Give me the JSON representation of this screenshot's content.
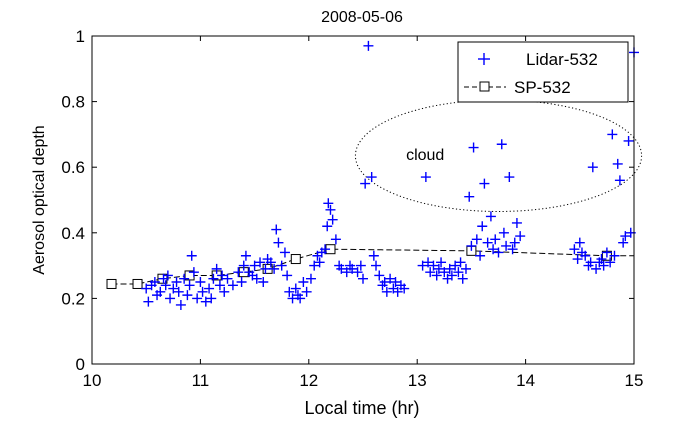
{
  "chart_data": {
    "type": "scatter",
    "title": "2008-05-06",
    "xlabel": "Local time (hr)",
    "ylabel": "Aerosol optical depth",
    "xlim": [
      10,
      15
    ],
    "ylim": [
      0,
      1
    ],
    "xticks": [
      10,
      11,
      12,
      13,
      14,
      15
    ],
    "yticks": [
      0,
      0.2,
      0.4,
      0.6,
      0.8,
      1
    ],
    "ytick_labels": [
      "0",
      "0.2",
      "0.4",
      "0.6",
      "0.8",
      "1"
    ],
    "grid": false,
    "legend_position": "top-right",
    "annotation": {
      "text": "cloud",
      "x": 13.0,
      "y": 0.64
    },
    "cloud_ellipse": {
      "cx": 13.75,
      "cy": 0.635,
      "rx": 1.32,
      "ry": 0.17
    },
    "colors": {
      "lidar": "#0000ff",
      "sp": "#000000"
    },
    "series": [
      {
        "name": "Lidar-532",
        "marker": "plus",
        "points": [
          [
            10.5,
            0.23
          ],
          [
            10.52,
            0.19
          ],
          [
            10.55,
            0.24
          ],
          [
            10.58,
            0.25
          ],
          [
            10.6,
            0.21
          ],
          [
            10.63,
            0.22
          ],
          [
            10.66,
            0.26
          ],
          [
            10.68,
            0.24
          ],
          [
            10.7,
            0.27
          ],
          [
            10.72,
            0.2
          ],
          [
            10.75,
            0.23
          ],
          [
            10.78,
            0.25
          ],
          [
            10.8,
            0.22
          ],
          [
            10.82,
            0.18
          ],
          [
            10.85,
            0.26
          ],
          [
            10.88,
            0.21
          ],
          [
            10.9,
            0.24
          ],
          [
            10.92,
            0.33
          ],
          [
            10.94,
            0.28
          ],
          [
            10.97,
            0.2
          ],
          [
            11.0,
            0.25
          ],
          [
            11.02,
            0.22
          ],
          [
            11.05,
            0.19
          ],
          [
            11.08,
            0.23
          ],
          [
            11.1,
            0.2
          ],
          [
            11.12,
            0.26
          ],
          [
            11.15,
            0.29
          ],
          [
            11.18,
            0.24
          ],
          [
            11.2,
            0.27
          ],
          [
            11.22,
            0.22
          ],
          [
            11.25,
            0.26
          ],
          [
            11.3,
            0.24
          ],
          [
            11.35,
            0.28
          ],
          [
            11.38,
            0.25
          ],
          [
            11.4,
            0.3
          ],
          [
            11.42,
            0.33
          ],
          [
            11.45,
            0.28
          ],
          [
            11.48,
            0.27
          ],
          [
            11.5,
            0.3
          ],
          [
            11.52,
            0.26
          ],
          [
            11.55,
            0.31
          ],
          [
            11.58,
            0.25
          ],
          [
            11.6,
            0.29
          ],
          [
            11.62,
            0.32
          ],
          [
            11.65,
            0.31
          ],
          [
            11.68,
            0.29
          ],
          [
            11.7,
            0.41
          ],
          [
            11.72,
            0.37
          ],
          [
            11.75,
            0.3
          ],
          [
            11.78,
            0.34
          ],
          [
            11.8,
            0.27
          ],
          [
            11.82,
            0.22
          ],
          [
            11.85,
            0.2
          ],
          [
            11.88,
            0.23
          ],
          [
            11.9,
            0.21
          ],
          [
            11.92,
            0.2
          ],
          [
            11.95,
            0.25
          ],
          [
            11.98,
            0.22
          ],
          [
            12.02,
            0.26
          ],
          [
            12.05,
            0.3
          ],
          [
            12.08,
            0.33
          ],
          [
            12.1,
            0.31
          ],
          [
            12.12,
            0.34
          ],
          [
            12.15,
            0.35
          ],
          [
            12.17,
            0.42
          ],
          [
            12.18,
            0.49
          ],
          [
            12.2,
            0.47
          ],
          [
            12.22,
            0.44
          ],
          [
            12.25,
            0.38
          ],
          [
            12.28,
            0.3
          ],
          [
            12.3,
            0.29
          ],
          [
            12.35,
            0.28
          ],
          [
            12.38,
            0.3
          ],
          [
            12.4,
            0.29
          ],
          [
            12.45,
            0.28
          ],
          [
            12.48,
            0.3
          ],
          [
            12.5,
            0.26
          ],
          [
            12.52,
            0.55
          ],
          [
            12.55,
            0.97
          ],
          [
            12.58,
            0.57
          ],
          [
            12.6,
            0.33
          ],
          [
            12.62,
            0.3
          ],
          [
            12.65,
            0.27
          ],
          [
            12.68,
            0.24
          ],
          [
            12.7,
            0.25
          ],
          [
            12.72,
            0.22
          ],
          [
            12.75,
            0.26
          ],
          [
            12.78,
            0.23
          ],
          [
            12.8,
            0.25
          ],
          [
            12.82,
            0.22
          ],
          [
            12.85,
            0.24
          ],
          [
            12.88,
            0.23
          ],
          [
            13.05,
            0.3
          ],
          [
            13.08,
            0.57
          ],
          [
            13.1,
            0.31
          ],
          [
            13.12,
            0.28
          ],
          [
            13.15,
            0.3
          ],
          [
            13.18,
            0.27
          ],
          [
            13.2,
            0.29
          ],
          [
            13.22,
            0.31
          ],
          [
            13.25,
            0.28
          ],
          [
            13.28,
            0.26
          ],
          [
            13.3,
            0.29
          ],
          [
            13.32,
            0.27
          ],
          [
            13.35,
            0.3
          ],
          [
            13.38,
            0.28
          ],
          [
            13.4,
            0.31
          ],
          [
            13.42,
            0.26
          ],
          [
            13.45,
            0.29
          ],
          [
            13.48,
            0.51
          ],
          [
            13.5,
            0.36
          ],
          [
            13.52,
            0.66
          ],
          [
            13.55,
            0.38
          ],
          [
            13.58,
            0.33
          ],
          [
            13.6,
            0.42
          ],
          [
            13.62,
            0.55
          ],
          [
            13.65,
            0.37
          ],
          [
            13.68,
            0.45
          ],
          [
            13.7,
            0.35
          ],
          [
            13.72,
            0.38
          ],
          [
            13.75,
            0.34
          ],
          [
            13.78,
            0.67
          ],
          [
            13.8,
            0.4
          ],
          [
            13.82,
            0.36
          ],
          [
            13.85,
            0.57
          ],
          [
            13.88,
            0.35
          ],
          [
            13.9,
            0.37
          ],
          [
            13.92,
            0.43
          ],
          [
            13.95,
            0.39
          ],
          [
            14.45,
            0.35
          ],
          [
            14.48,
            0.32
          ],
          [
            14.5,
            0.37
          ],
          [
            14.52,
            0.34
          ],
          [
            14.55,
            0.33
          ],
          [
            14.58,
            0.3
          ],
          [
            14.6,
            0.31
          ],
          [
            14.62,
            0.6
          ],
          [
            14.65,
            0.29
          ],
          [
            14.68,
            0.31
          ],
          [
            14.7,
            0.32
          ],
          [
            14.72,
            0.3
          ],
          [
            14.75,
            0.34
          ],
          [
            14.78,
            0.31
          ],
          [
            14.8,
            0.7
          ],
          [
            14.82,
            0.33
          ],
          [
            14.85,
            0.61
          ],
          [
            14.87,
            0.56
          ],
          [
            14.9,
            0.37
          ],
          [
            14.92,
            0.39
          ],
          [
            14.95,
            0.68
          ],
          [
            14.97,
            0.4
          ],
          [
            15.0,
            0.95
          ]
        ]
      },
      {
        "name": "SP-532",
        "marker": "square",
        "points": [
          [
            10.18,
            0.244
          ],
          [
            10.42,
            0.244
          ],
          [
            10.65,
            0.26
          ],
          [
            10.9,
            0.27
          ],
          [
            11.15,
            0.27
          ],
          [
            11.4,
            0.28
          ],
          [
            11.62,
            0.29
          ],
          [
            11.88,
            0.32
          ],
          [
            12.2,
            0.35
          ],
          [
            13.5,
            0.345
          ],
          [
            14.75,
            0.33
          ],
          [
            15.0,
            0.33
          ]
        ]
      }
    ]
  }
}
